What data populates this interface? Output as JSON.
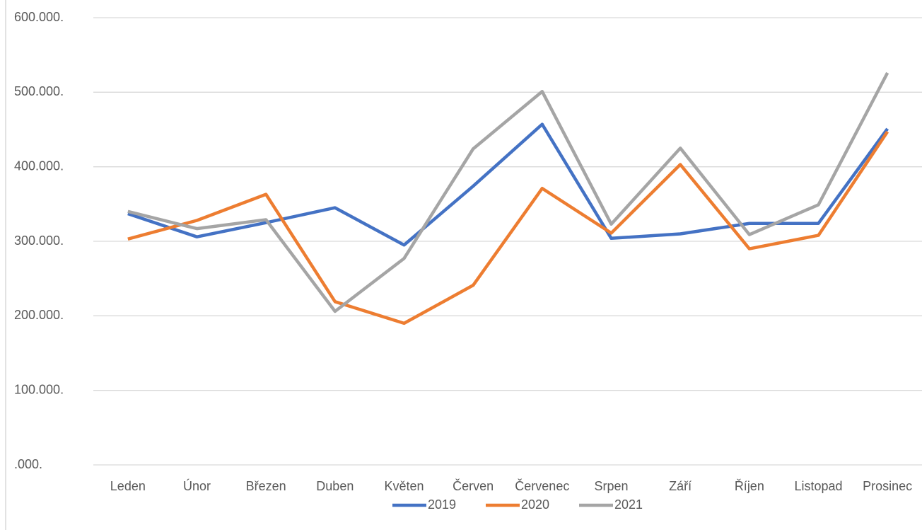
{
  "chart_data": {
    "type": "line",
    "categories": [
      "Leden",
      "Únor",
      "Březen",
      "Duben",
      "Květen",
      "Červen",
      "Červenec",
      "Srpen",
      "Září",
      "Říjen",
      "Listopad",
      "Prosinec"
    ],
    "series": [
      {
        "name": "2019",
        "color": "#4472c4",
        "values": [
          337000,
          306000,
          325000,
          345000,
          295000,
          374000,
          457000,
          304000,
          310000,
          324000,
          324000,
          451000
        ]
      },
      {
        "name": "2020",
        "color": "#ed7d31",
        "values": [
          303000,
          328000,
          363000,
          219000,
          190000,
          241000,
          371000,
          311000,
          403000,
          290000,
          308000,
          447000
        ]
      },
      {
        "name": "2021",
        "color": "#a5a5a5",
        "values": [
          340000,
          317000,
          329000,
          206000,
          277000,
          424000,
          501000,
          323000,
          425000,
          309000,
          349000,
          526000
        ]
      }
    ],
    "ylim": [
      0,
      600000
    ],
    "yticks": [
      {
        "value": 0,
        "label": ".000."
      },
      {
        "value": 100000,
        "label": "100.000."
      },
      {
        "value": 200000,
        "label": "200.000."
      },
      {
        "value": 300000,
        "label": "300.000."
      },
      {
        "value": 400000,
        "label": "400.000."
      },
      {
        "value": 500000,
        "label": "500.000."
      },
      {
        "value": 600000,
        "label": "600.000."
      }
    ],
    "grid": true,
    "legend": "bottom"
  }
}
